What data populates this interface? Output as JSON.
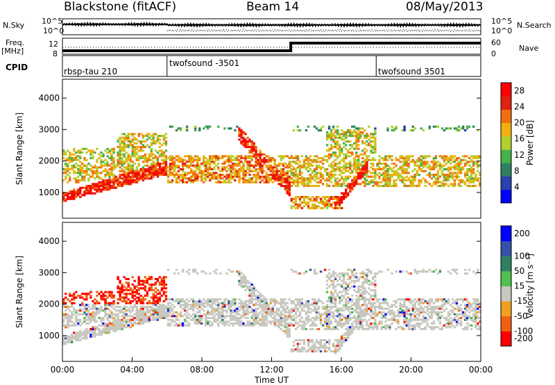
{
  "header": {
    "site": "Blackstone (fitACF)",
    "beam": "Beam 14",
    "date": "08/May/2013"
  },
  "labels": {
    "nsky": "N.Sky",
    "nsearch": "N.Search",
    "freq": "Freq.",
    "mhz": "[MHz]",
    "nave": "Nave",
    "cpid": "CPID",
    "noise_ticks": [
      "10^5",
      "10^0"
    ],
    "freq_ticks": [
      "12",
      "8"
    ],
    "nave_ticks": [
      "60",
      "0"
    ]
  },
  "cpid_segments": [
    {
      "name": "rbsp-tau 210",
      "start_hour": 0
    },
    {
      "name": "twofsound -3501",
      "start_hour": 6
    },
    {
      "name": "twofsound 3501",
      "start_hour": 18
    }
  ],
  "chart_data": {
    "type": "heatmap",
    "title": "Blackstone (fitACF)",
    "xlabel": "Time UT",
    "x_ticks": [
      "00:00",
      "04:00",
      "08:00",
      "12:00",
      "16:00",
      "20:00",
      "00:00"
    ],
    "xlim_hours": [
      0,
      24
    ],
    "panels": [
      {
        "name": "power",
        "ylabel": "Slant Range [km]",
        "ylim_km": [
          180,
          4600
        ],
        "y_ticks": [
          1000,
          2000,
          3000,
          4000
        ],
        "colorbar_label": "Power [dB]",
        "colorbar_ticks": [
          28,
          24,
          20,
          16,
          12,
          8,
          4
        ],
        "colorbar_range": [
          0,
          30
        ],
        "colors": [
          "#0000ff",
          "#2840b0",
          "#2e8060",
          "#48b048",
          "#b0d030",
          "#f0b010",
          "#f07010",
          "#e02010",
          "#ff0000"
        ]
      },
      {
        "name": "velocity",
        "ylabel": "Slant Range [km]",
        "ylim_km": [
          180,
          4600
        ],
        "y_ticks": [
          1000,
          2000,
          3000,
          4000
        ],
        "colorbar_label": "Velocity [m s⁻¹]",
        "colorbar_ticks": [
          200,
          100,
          50,
          15,
          -15,
          -50,
          -100,
          -200
        ],
        "colorbar_range": [
          -250,
          250
        ],
        "colors": [
          "#ff0000",
          "#f06010",
          "#f0a020",
          "#c8c8c0",
          "#50c050",
          "#2e8060",
          "#3850a8",
          "#0000ff"
        ]
      }
    ]
  }
}
